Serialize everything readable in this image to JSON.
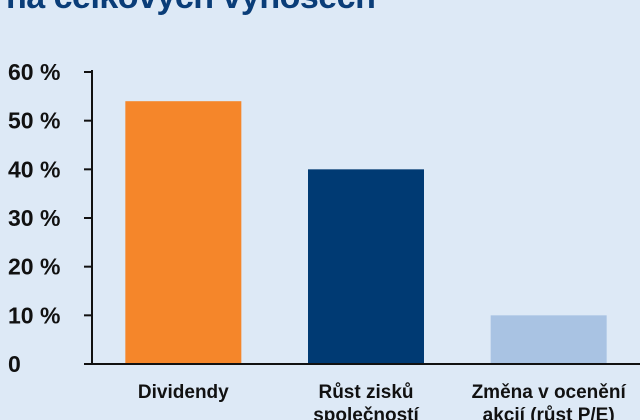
{
  "chart_data": {
    "type": "bar",
    "title": "na celkových výnosech",
    "categories": [
      "Dividendy",
      "Růst zisků společností",
      "Změna v ocenění akcií (růst P/E)"
    ],
    "values": [
      54,
      40,
      10
    ],
    "colors": [
      "#f5862a",
      "#003a73",
      "#a9c3e3"
    ],
    "ylim": [
      0,
      60
    ],
    "yticks": [
      0,
      10,
      20,
      30,
      40,
      50,
      60
    ],
    "ytick_labels": [
      "0",
      "10 %",
      "20 %",
      "30 %",
      "40 %",
      "50 %",
      "60 %"
    ],
    "xlabel": "",
    "ylabel": "",
    "grid": false
  }
}
